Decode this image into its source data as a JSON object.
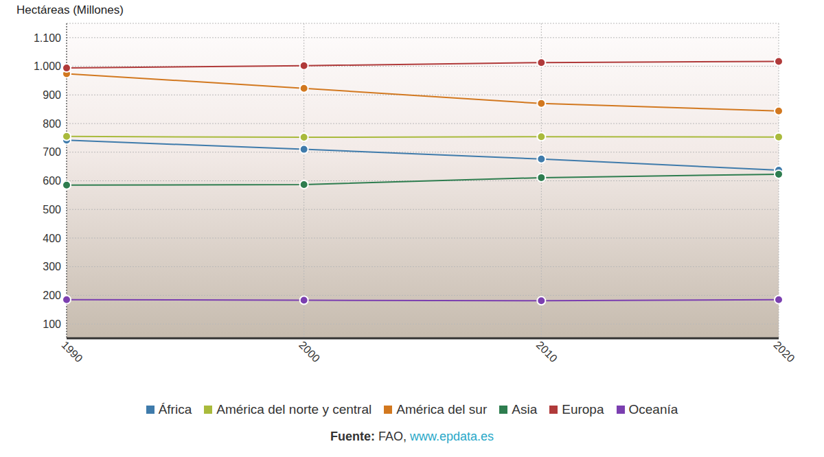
{
  "chart_data": {
    "type": "line",
    "y_label": "Hectáreas (Millones)",
    "categories": [
      "1990",
      "2000",
      "2010",
      "2020"
    ],
    "series": [
      {
        "name": "África",
        "color": "#3f7bab",
        "values": [
          742,
          710,
          676,
          637
        ]
      },
      {
        "name": "América del norte y central",
        "color": "#a9ba3c",
        "values": [
          755,
          752,
          754,
          753
        ]
      },
      {
        "name": "América del sur",
        "color": "#d2781f",
        "values": [
          974,
          923,
          870,
          844
        ]
      },
      {
        "name": "Asia",
        "color": "#2e7d4f",
        "values": [
          585,
          587,
          611,
          623
        ]
      },
      {
        "name": "Europa",
        "color": "#b03a3a",
        "values": [
          994,
          1002,
          1013,
          1017
        ]
      },
      {
        "name": "Oceanía",
        "color": "#7b3fb0",
        "values": [
          185,
          183,
          181,
          185
        ]
      }
    ],
    "ylim": [
      50,
      1150
    ],
    "yticks": [
      100,
      200,
      300,
      400,
      500,
      600,
      700,
      800,
      900,
      {
        "value": 1000,
        "label": "1.000"
      },
      {
        "value": 1100,
        "label": "1.100"
      }
    ],
    "grid": true,
    "legend": "bottom",
    "marker": "circle",
    "source": {
      "label": "Fuente:",
      "text": "FAO,",
      "link": "www.epdata.es"
    }
  }
}
